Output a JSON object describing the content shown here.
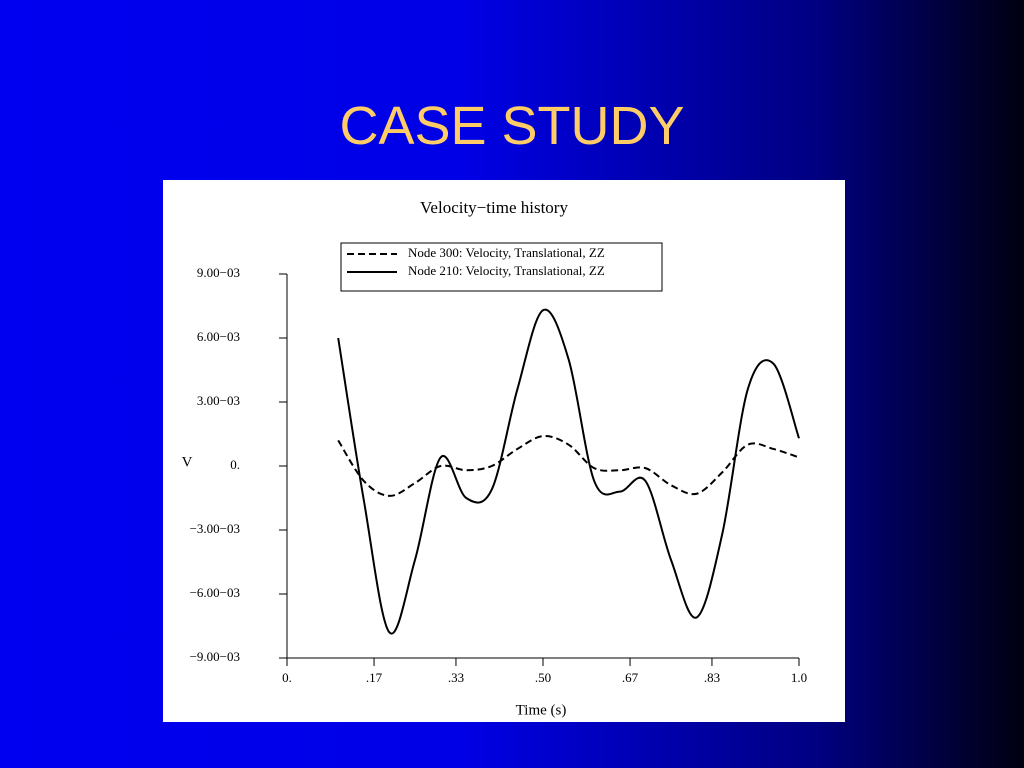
{
  "slide_title": "CASE STUDY",
  "chart_data": {
    "type": "line",
    "title": "Velocity−time history",
    "x_label": "Time (s)",
    "y_label": "V",
    "x": [
      0.1,
      0.15,
      0.2,
      0.25,
      0.3,
      0.35,
      0.4,
      0.45,
      0.5,
      0.55,
      0.6,
      0.65,
      0.7,
      0.75,
      0.8,
      0.85,
      0.9,
      0.95,
      1.0
    ],
    "series": [
      {
        "name": "Node 300: Velocity, Translational, ZZ",
        "color": "#000000",
        "line_style": "dashed",
        "values": [
          0.0012,
          -0.0007,
          -0.0014,
          -0.0008,
          0.0,
          -0.0002,
          0.0,
          0.0008,
          0.0014,
          0.001,
          -0.0001,
          -0.0002,
          -0.0001,
          -0.0009,
          -0.0013,
          -0.0003,
          0.001,
          0.0008,
          0.0004
        ]
      },
      {
        "name": "Node 210: Velocity, Translational, ZZ",
        "color": "#000000",
        "line_style": "solid",
        "values": [
          0.006,
          -0.0016,
          -0.0078,
          -0.0044,
          0.0004,
          -0.0015,
          -0.0011,
          0.0036,
          0.0073,
          0.005,
          -0.0007,
          -0.0012,
          -0.0007,
          -0.0044,
          -0.0071,
          -0.0032,
          0.0036,
          0.0048,
          0.0013
        ]
      }
    ],
    "xlim": [
      0,
      1
    ],
    "xticks": [
      {
        "value": 0,
        "label": "0."
      },
      {
        "value": 0.17,
        "label": ".17"
      },
      {
        "value": 0.33,
        "label": ".33"
      },
      {
        "value": 0.5,
        "label": ".50"
      },
      {
        "value": 0.67,
        "label": ".67"
      },
      {
        "value": 0.83,
        "label": ".83"
      },
      {
        "value": 1,
        "label": "1.0"
      }
    ],
    "ylim": [
      -0.009,
      0.009
    ],
    "yticks": [
      {
        "value": 0.009,
        "label": "9.00−03"
      },
      {
        "value": 0.006,
        "label": "6.00−03"
      },
      {
        "value": 0.003,
        "label": "3.00−03"
      },
      {
        "value": 0,
        "label": "0."
      },
      {
        "value": -0.003,
        "label": "−3.00−03"
      },
      {
        "value": -0.006,
        "label": "−6.00−03"
      },
      {
        "value": -0.009,
        "label": "−9.00−03"
      }
    ],
    "grid": false,
    "legend": "top"
  }
}
